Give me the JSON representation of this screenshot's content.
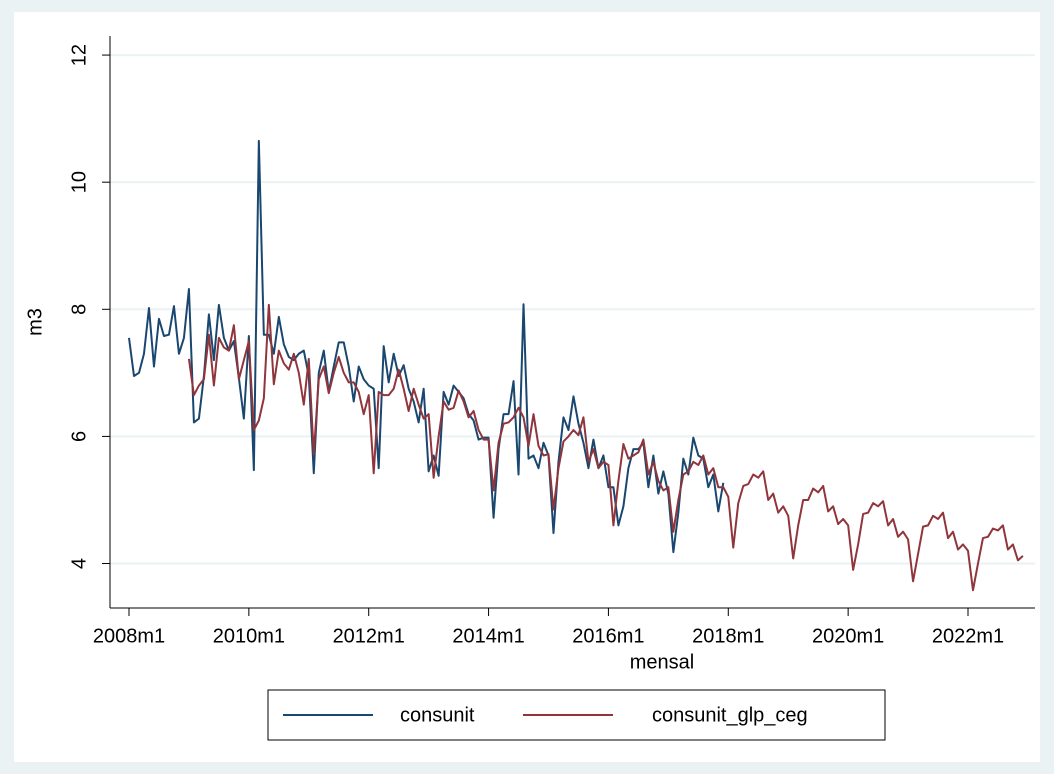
{
  "chart_data": {
    "type": "line",
    "xlabel": "mensal",
    "ylabel": "m3",
    "categories": [
      "2008m1",
      null,
      null,
      null,
      null,
      null,
      null,
      null,
      null,
      null,
      null,
      null,
      null,
      null,
      null,
      null,
      null,
      null,
      null,
      null,
      null,
      null,
      null,
      null,
      "2010m1",
      null,
      null,
      null,
      null,
      null,
      null,
      null,
      null,
      null,
      null,
      null,
      null,
      null,
      null,
      null,
      null,
      null,
      null,
      null,
      null,
      null,
      null,
      null,
      "2012m1",
      null,
      null,
      null,
      null,
      null,
      null,
      null,
      null,
      null,
      null,
      null,
      null,
      null,
      null,
      null,
      null,
      null,
      null,
      null,
      null,
      null,
      null,
      null,
      "2014m1",
      null,
      null,
      null,
      null,
      null,
      null,
      null,
      null,
      null,
      null,
      null,
      null,
      null,
      null,
      null,
      null,
      null,
      null,
      null,
      null,
      null,
      null,
      null,
      "2016m1",
      null,
      null,
      null,
      null,
      null,
      null,
      null,
      null,
      null,
      null,
      null,
      null,
      null,
      null,
      null,
      null,
      null,
      null,
      null,
      null,
      null,
      null,
      null,
      "2018m1",
      null,
      null,
      null,
      null,
      null,
      null,
      null,
      null,
      null,
      null,
      null,
      null,
      null,
      null,
      null,
      null,
      null,
      null,
      null,
      null,
      null,
      null,
      null,
      "2020m1",
      null,
      null,
      null,
      null,
      null,
      null,
      null,
      null,
      null,
      null,
      null,
      null,
      null,
      null,
      null,
      null,
      null,
      null,
      null,
      null,
      null,
      null,
      null,
      "2022m1",
      null,
      null,
      null,
      null,
      null,
      null,
      null,
      null,
      null,
      null,
      null
    ],
    "series": [
      {
        "name": "consunit",
        "color": "#1a476f",
        "values": [
          7.55,
          6.95,
          7.0,
          7.3,
          8.02,
          7.1,
          7.85,
          7.58,
          7.6,
          8.05,
          7.3,
          7.55,
          8.32,
          6.22,
          6.28,
          6.95,
          7.92,
          7.2,
          8.07,
          7.55,
          7.35,
          7.5,
          6.92,
          6.28,
          7.58,
          5.47,
          10.65,
          7.6,
          7.6,
          7.3,
          7.88,
          7.45,
          7.25,
          7.2,
          7.3,
          7.35,
          6.95,
          5.42,
          7.0,
          7.35,
          6.7,
          7.1,
          7.48,
          7.48,
          7.1,
          6.55,
          7.1,
          6.9,
          6.8,
          6.75,
          5.5,
          7.42,
          6.85,
          7.3,
          6.95,
          7.12,
          6.75,
          6.55,
          6.22,
          6.75,
          5.45,
          5.7,
          5.38,
          6.7,
          6.5,
          6.8,
          6.7,
          6.6,
          6.35,
          6.25,
          5.95,
          5.98,
          5.98,
          4.72,
          5.8,
          6.35,
          6.35,
          6.87,
          5.4,
          8.08,
          5.65,
          5.7,
          5.5,
          5.9,
          5.7,
          4.48,
          5.6,
          6.3,
          6.1,
          6.63,
          6.2,
          5.9,
          5.5,
          5.95,
          5.5,
          5.7,
          5.2,
          5.2,
          4.6,
          4.9,
          5.5,
          5.8,
          5.8,
          5.9,
          5.2,
          5.7,
          5.1,
          5.45,
          5.1,
          4.18,
          4.8,
          5.65,
          5.4,
          5.98,
          5.7,
          5.65,
          5.2,
          5.4,
          4.82,
          5.27,
          null,
          null,
          null,
          null,
          null,
          null,
          null,
          null,
          null,
          null,
          null,
          null,
          null,
          null,
          null,
          null,
          null,
          null,
          null,
          null,
          null,
          null,
          null,
          null,
          null,
          null,
          null,
          null,
          null,
          null,
          null,
          null,
          null,
          null,
          null,
          null,
          null,
          null,
          null,
          null,
          null,
          null,
          null,
          null,
          null,
          null,
          null,
          null,
          null,
          null,
          null,
          null,
          null,
          null,
          null,
          null,
          null,
          null,
          null,
          null
        ]
      },
      {
        "name": "consunit_glp_ceg",
        "color": "#90353b",
        "values": [
          null,
          null,
          null,
          null,
          null,
          null,
          null,
          null,
          null,
          null,
          null,
          null,
          7.22,
          6.65,
          6.8,
          6.9,
          7.6,
          6.8,
          7.55,
          7.4,
          7.35,
          7.75,
          6.9,
          7.2,
          7.5,
          6.1,
          6.25,
          6.6,
          8.07,
          6.82,
          7.35,
          7.15,
          7.05,
          7.3,
          7.0,
          6.5,
          7.22,
          5.72,
          6.9,
          7.1,
          6.68,
          7.0,
          7.25,
          7.0,
          6.85,
          6.85,
          6.7,
          6.35,
          6.65,
          5.42,
          6.7,
          6.65,
          6.65,
          6.75,
          7.05,
          6.75,
          6.4,
          6.75,
          6.5,
          6.28,
          6.35,
          5.35,
          6.0,
          6.55,
          6.42,
          6.45,
          6.72,
          6.55,
          6.3,
          6.4,
          6.1,
          5.95,
          5.95,
          5.15,
          5.9,
          6.2,
          6.22,
          6.3,
          6.45,
          6.3,
          5.85,
          6.35,
          5.85,
          5.7,
          5.72,
          4.85,
          5.5,
          5.92,
          6.0,
          6.1,
          6.02,
          6.3,
          5.6,
          5.8,
          5.5,
          5.6,
          5.55,
          4.6,
          5.3,
          5.88,
          5.65,
          5.7,
          5.75,
          5.95,
          5.4,
          5.6,
          5.3,
          5.15,
          5.2,
          4.5,
          5.0,
          5.4,
          5.45,
          5.6,
          5.55,
          5.7,
          5.4,
          5.5,
          5.2,
          5.2,
          5.05,
          4.25,
          4.95,
          5.22,
          5.25,
          5.4,
          5.35,
          5.45,
          5.0,
          5.1,
          4.8,
          4.9,
          4.75,
          4.08,
          4.6,
          5.0,
          5.0,
          5.18,
          5.12,
          5.22,
          4.82,
          4.9,
          4.62,
          4.7,
          4.6,
          3.9,
          4.3,
          4.78,
          4.8,
          4.95,
          4.9,
          4.98,
          4.6,
          4.7,
          4.42,
          4.5,
          4.38,
          3.72,
          4.15,
          4.58,
          4.6,
          4.75,
          4.7,
          4.8,
          4.4,
          4.5,
          4.22,
          4.3,
          4.2,
          3.58,
          4.0,
          4.4,
          4.42,
          4.55,
          4.52,
          4.6,
          4.22,
          4.3,
          4.05,
          4.12
        ]
      }
    ],
    "ylim": [
      3.3,
      12.3
    ],
    "yticks": [
      4,
      6,
      8,
      10,
      12
    ],
    "grid": true,
    "legend": "bottom"
  }
}
